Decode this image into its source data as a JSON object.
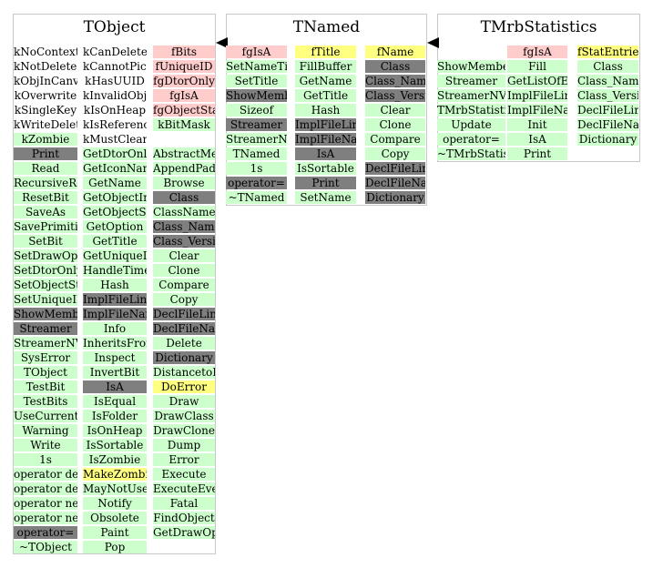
{
  "classes": [
    {
      "title": "TObject",
      "columns": [
        [
          {
            "t": "kNoContextMenu",
            "c": "w"
          },
          {
            "t": "kNotDeleted",
            "c": "w"
          },
          {
            "t": "kObjInCanvas",
            "c": "w"
          },
          {
            "t": "kOverwrite",
            "c": "w"
          },
          {
            "t": "kSingleKey",
            "c": "w"
          },
          {
            "t": "kWriteDelete",
            "c": "w"
          },
          {
            "t": "kZombie",
            "c": "g"
          },
          {
            "t": "Print",
            "c": "d"
          },
          {
            "t": "Read",
            "c": "g"
          },
          {
            "t": "RecursiveRemove",
            "c": "g"
          },
          {
            "t": "ResetBit",
            "c": "g"
          },
          {
            "t": "SaveAs",
            "c": "g"
          },
          {
            "t": "SavePrimitive",
            "c": "g"
          },
          {
            "t": "SetBit",
            "c": "g"
          },
          {
            "t": "SetDrawOption",
            "c": "g"
          },
          {
            "t": "SetDtorOnly",
            "c": "g"
          },
          {
            "t": "SetObjectStat",
            "c": "g"
          },
          {
            "t": "SetUniqueID",
            "c": "g"
          },
          {
            "t": "ShowMembers",
            "c": "d"
          },
          {
            "t": "Streamer",
            "c": "d"
          },
          {
            "t": "StreamerNVirtual",
            "c": "g"
          },
          {
            "t": "SysError",
            "c": "g"
          },
          {
            "t": "TObject",
            "c": "g"
          },
          {
            "t": "TestBit",
            "c": "g"
          },
          {
            "t": "TestBits",
            "c": "g"
          },
          {
            "t": "UseCurrentStyle",
            "c": "g"
          },
          {
            "t": "Warning",
            "c": "g"
          },
          {
            "t": "Write",
            "c": "g"
          },
          {
            "t": "1s",
            "c": "g"
          },
          {
            "t": "operator delete",
            "c": "g"
          },
          {
            "t": "operator delete[]",
            "c": "g"
          },
          {
            "t": "operator new",
            "c": "g"
          },
          {
            "t": "operator new[]",
            "c": "g"
          },
          {
            "t": "operator=",
            "c": "d"
          },
          {
            "t": "~TObject",
            "c": "g"
          }
        ],
        [
          {
            "t": "kCanDelete",
            "c": "w"
          },
          {
            "t": "kCannotPick",
            "c": "w"
          },
          {
            "t": "kHasUUID",
            "c": "w"
          },
          {
            "t": "kInvalidObject",
            "c": "w"
          },
          {
            "t": "kIsOnHeap",
            "c": "w"
          },
          {
            "t": "kIsReferenced",
            "c": "w"
          },
          {
            "t": "kMustCleanup",
            "c": "w"
          },
          {
            "t": "GetDtorOnly",
            "c": "g"
          },
          {
            "t": "GetIconName",
            "c": "g"
          },
          {
            "t": "GetName",
            "c": "g"
          },
          {
            "t": "GetObjectInfo",
            "c": "g"
          },
          {
            "t": "GetObjectStat",
            "c": "g"
          },
          {
            "t": "GetOption",
            "c": "g"
          },
          {
            "t": "GetTitle",
            "c": "g"
          },
          {
            "t": "GetUniqueID",
            "c": "g"
          },
          {
            "t": "HandleTimer",
            "c": "g"
          },
          {
            "t": "Hash",
            "c": "g"
          },
          {
            "t": "ImplFileLine",
            "c": "d"
          },
          {
            "t": "ImplFileName",
            "c": "d"
          },
          {
            "t": "Info",
            "c": "g"
          },
          {
            "t": "InheritsFrom",
            "c": "g"
          },
          {
            "t": "Inspect",
            "c": "g"
          },
          {
            "t": "InvertBit",
            "c": "g"
          },
          {
            "t": "IsA",
            "c": "d"
          },
          {
            "t": "IsEqual",
            "c": "g"
          },
          {
            "t": "IsFolder",
            "c": "g"
          },
          {
            "t": "IsOnHeap",
            "c": "g"
          },
          {
            "t": "IsSortable",
            "c": "g"
          },
          {
            "t": "IsZombie",
            "c": "g"
          },
          {
            "t": "MakeZombie",
            "c": "y"
          },
          {
            "t": "MayNotUse",
            "c": "g"
          },
          {
            "t": "Notify",
            "c": "g"
          },
          {
            "t": "Obsolete",
            "c": "g"
          },
          {
            "t": "Paint",
            "c": "g"
          },
          {
            "t": "Pop",
            "c": "g"
          }
        ],
        [
          {
            "t": "fBits",
            "c": "p"
          },
          {
            "t": "fUniqueID",
            "c": "p"
          },
          {
            "t": "fgDtorOnly",
            "c": "p"
          },
          {
            "t": "fgIsA",
            "c": "p"
          },
          {
            "t": "fgObjectStat",
            "c": "p"
          },
          {
            "t": "kBitMask",
            "c": "g"
          },
          {
            "t": "",
            "c": "w"
          },
          {
            "t": "AbstractMethod",
            "c": "g"
          },
          {
            "t": "AppendPad",
            "c": "g"
          },
          {
            "t": "Browse",
            "c": "g"
          },
          {
            "t": "Class",
            "c": "d"
          },
          {
            "t": "ClassName",
            "c": "g"
          },
          {
            "t": "Class_Name",
            "c": "d"
          },
          {
            "t": "Class_Version",
            "c": "d"
          },
          {
            "t": "Clear",
            "c": "g"
          },
          {
            "t": "Clone",
            "c": "g"
          },
          {
            "t": "Compare",
            "c": "g"
          },
          {
            "t": "Copy",
            "c": "g"
          },
          {
            "t": "DeclFileLine",
            "c": "d"
          },
          {
            "t": "DeclFileName",
            "c": "d"
          },
          {
            "t": "Delete",
            "c": "g"
          },
          {
            "t": "Dictionary",
            "c": "d"
          },
          {
            "t": "DistancetoPrimitive",
            "c": "g"
          },
          {
            "t": "DoError",
            "c": "y"
          },
          {
            "t": "Draw",
            "c": "g"
          },
          {
            "t": "DrawClass",
            "c": "g"
          },
          {
            "t": "DrawClone",
            "c": "g"
          },
          {
            "t": "Dump",
            "c": "g"
          },
          {
            "t": "Error",
            "c": "g"
          },
          {
            "t": "Execute",
            "c": "g"
          },
          {
            "t": "ExecuteEvent",
            "c": "g"
          },
          {
            "t": "Fatal",
            "c": "g"
          },
          {
            "t": "FindObject",
            "c": "g"
          },
          {
            "t": "GetDrawOption",
            "c": "g"
          }
        ]
      ]
    },
    {
      "title": "TNamed",
      "columns": [
        [
          {
            "t": "fgIsA",
            "c": "p"
          },
          {
            "t": "SetNameTitle",
            "c": "g"
          },
          {
            "t": "SetTitle",
            "c": "g"
          },
          {
            "t": "ShowMembers",
            "c": "d"
          },
          {
            "t": "Sizeof",
            "c": "g"
          },
          {
            "t": "Streamer",
            "c": "d"
          },
          {
            "t": "StreamerNVirtual",
            "c": "g"
          },
          {
            "t": "TNamed",
            "c": "g"
          },
          {
            "t": "1s",
            "c": "g"
          },
          {
            "t": "operator=",
            "c": "d"
          },
          {
            "t": "~TNamed",
            "c": "g"
          }
        ],
        [
          {
            "t": "fTitle",
            "c": "y"
          },
          {
            "t": "FillBuffer",
            "c": "g"
          },
          {
            "t": "GetName",
            "c": "g"
          },
          {
            "t": "GetTitle",
            "c": "g"
          },
          {
            "t": "Hash",
            "c": "g"
          },
          {
            "t": "ImplFileLine",
            "c": "d"
          },
          {
            "t": "ImplFileName",
            "c": "d"
          },
          {
            "t": "IsA",
            "c": "d"
          },
          {
            "t": "IsSortable",
            "c": "g"
          },
          {
            "t": "Print",
            "c": "d"
          },
          {
            "t": "SetName",
            "c": "g"
          }
        ],
        [
          {
            "t": "fName",
            "c": "y"
          },
          {
            "t": "Class",
            "c": "d"
          },
          {
            "t": "Class_Name",
            "c": "d"
          },
          {
            "t": "Class_Version",
            "c": "d"
          },
          {
            "t": "Clear",
            "c": "g"
          },
          {
            "t": "Clone",
            "c": "g"
          },
          {
            "t": "Compare",
            "c": "g"
          },
          {
            "t": "Copy",
            "c": "g"
          },
          {
            "t": "DeclFileLine",
            "c": "d"
          },
          {
            "t": "DeclFileName",
            "c": "d"
          },
          {
            "t": "Dictionary",
            "c": "d"
          }
        ]
      ]
    },
    {
      "title": "TMrbStatistics",
      "columns": [
        [
          {
            "t": "",
            "c": "w"
          },
          {
            "t": "ShowMembers",
            "c": "g"
          },
          {
            "t": "Streamer",
            "c": "g"
          },
          {
            "t": "StreamerNVirtual",
            "c": "g"
          },
          {
            "t": "TMrbStatistics",
            "c": "g"
          },
          {
            "t": "Update",
            "c": "g"
          },
          {
            "t": "operator=",
            "c": "g"
          },
          {
            "t": "~TMrbStatistics",
            "c": "g"
          }
        ],
        [
          {
            "t": "fgIsA",
            "c": "p"
          },
          {
            "t": "Fill",
            "c": "g"
          },
          {
            "t": "GetListOfEntries",
            "c": "g"
          },
          {
            "t": "ImplFileLine",
            "c": "g"
          },
          {
            "t": "ImplFileName",
            "c": "g"
          },
          {
            "t": "Init",
            "c": "g"
          },
          {
            "t": "IsA",
            "c": "g"
          },
          {
            "t": "Print",
            "c": "g"
          }
        ],
        [
          {
            "t": "fStatEntries",
            "c": "y"
          },
          {
            "t": "Class",
            "c": "g"
          },
          {
            "t": "Class_Name",
            "c": "g"
          },
          {
            "t": "Class_Version",
            "c": "g"
          },
          {
            "t": "DeclFileLine",
            "c": "g"
          },
          {
            "t": "DeclFileName",
            "c": "g"
          },
          {
            "t": "Dictionary",
            "c": "g"
          }
        ]
      ]
    }
  ],
  "colors": {
    "method": "#ccffcc",
    "overridden": "#7f7f7f",
    "private": "#ffcccc",
    "protected": "#ffff80"
  }
}
